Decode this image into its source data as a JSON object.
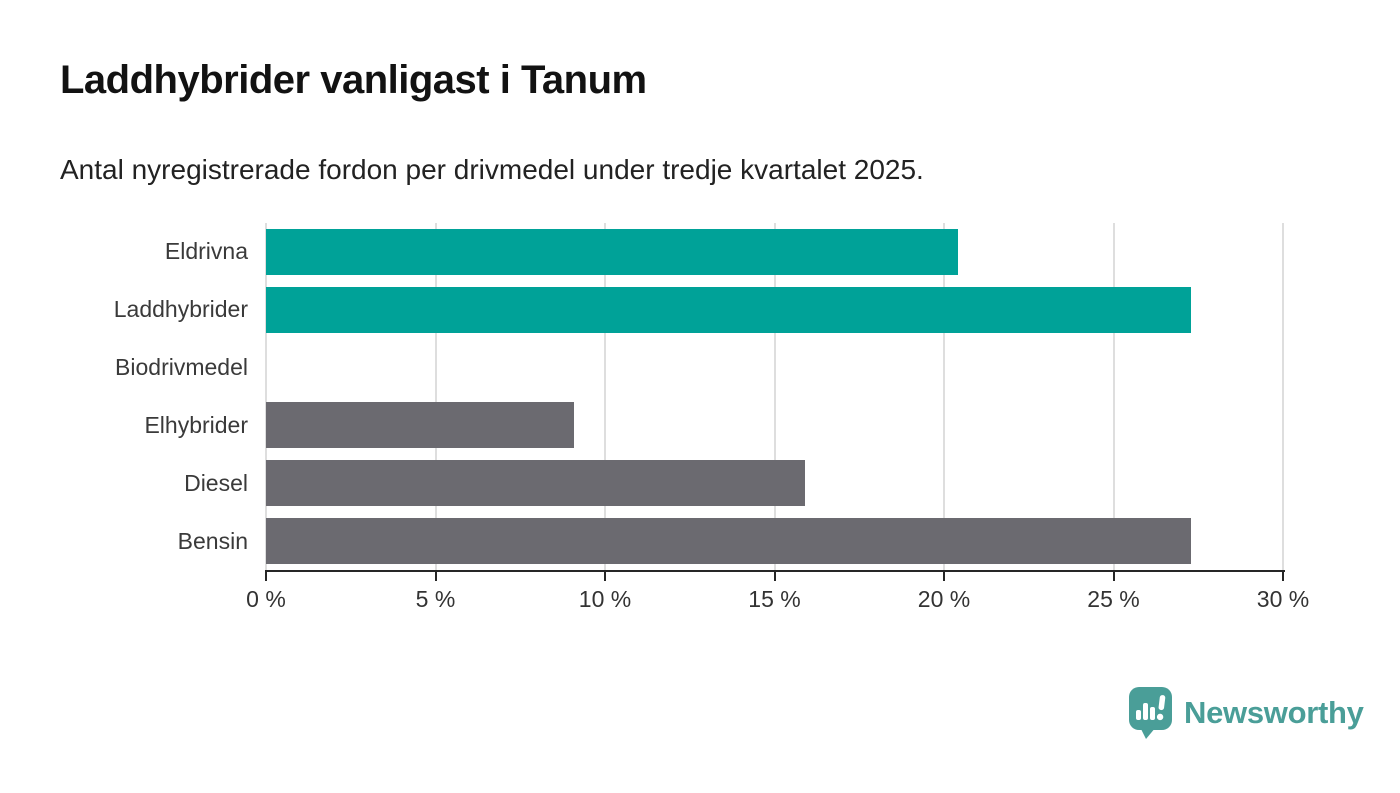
{
  "title": "Laddhybrider vanligast i Tanum",
  "subtitle": "Antal nyregistrerade fordon per drivmedel under tredje kvartalet 2025.",
  "chart_data": {
    "type": "bar",
    "orientation": "horizontal",
    "title": "Laddhybrider vanligast i Tanum",
    "subtitle": "Antal nyregistrerade fordon per drivmedel under tredje kvartalet 2025.",
    "categories": [
      "Eldrivna",
      "Laddhybrider",
      "Biodrivmedel",
      "Elhybrider",
      "Diesel",
      "Bensin"
    ],
    "values": [
      20.4,
      27.3,
      0,
      9.1,
      15.9,
      27.3
    ],
    "unit": "%",
    "xlim": [
      0,
      30
    ],
    "x_tick_values": [
      0,
      5,
      10,
      15,
      20,
      25,
      30
    ],
    "x_tick_labels": [
      "0 %",
      "5 %",
      "10 %",
      "15 %",
      "20 %",
      "25 %",
      "30 %"
    ],
    "grid": true,
    "legend": false,
    "bar_colors": [
      "#00a298",
      "#00a298",
      "#6b6a70",
      "#6b6a70",
      "#6b6a70",
      "#6b6a70"
    ],
    "colors": {
      "highlight": "#00a298",
      "default": "#6b6a70",
      "gridline": "#dedede",
      "axis": "#262626"
    }
  },
  "branding": {
    "logo_text": "Newsworthy",
    "logo_color": "#4a9e98",
    "logo_icon": "speech-bubble-bar-chart-icon"
  }
}
